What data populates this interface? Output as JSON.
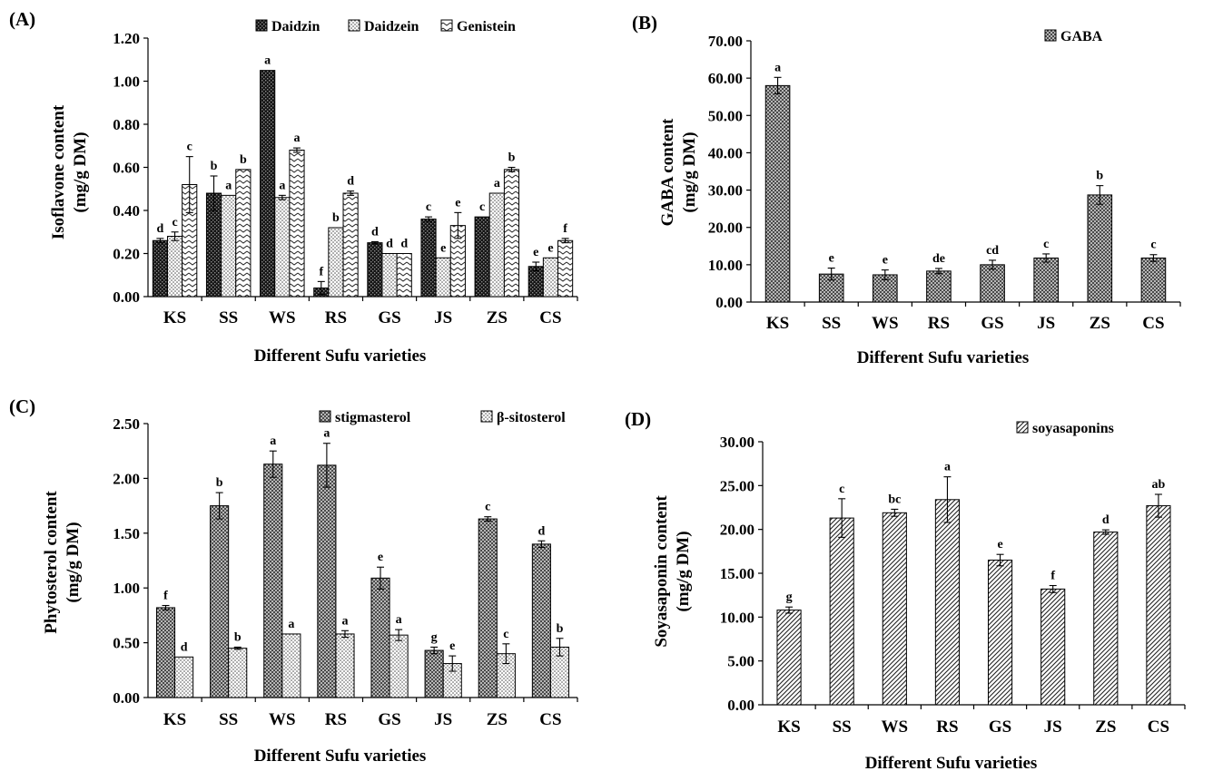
{
  "panels": [
    {
      "tag": "(A)",
      "chart_data": {
        "type": "bar",
        "categories": [
          "KS",
          "SS",
          "WS",
          "RS",
          "GS",
          "JS",
          "ZS",
          "CS"
        ],
        "ylim": [
          0,
          1.2
        ],
        "yticks": [
          "0.00",
          "0.20",
          "0.40",
          "0.60",
          "0.80",
          "1.00",
          "1.20"
        ],
        "xlabel": "Different  Sufu varieties",
        "ylabel_lines": [
          "Isoflavone content",
          "(mg/g DM)"
        ],
        "legend_position": "top-right",
        "series": [
          {
            "name": "Daidzin",
            "pattern": "checker",
            "values": [
              0.26,
              0.48,
              1.05,
              0.04,
              0.25,
              0.36,
              0.37,
              0.14
            ],
            "errors": [
              0.01,
              0.08,
              0.0,
              0.03,
              0.005,
              0.01,
              0.0,
              0.02
            ],
            "labels": [
              "d",
              "b",
              "a",
              "f",
              "d",
              "c",
              "c",
              "e"
            ]
          },
          {
            "name": "Daidzein",
            "pattern": "dots",
            "values": [
              0.28,
              0.47,
              0.46,
              0.32,
              0.2,
              0.18,
              0.48,
              0.18
            ],
            "errors": [
              0.02,
              0.0,
              0.01,
              0.0,
              0.0,
              0.0,
              0.0,
              0.0
            ],
            "labels": [
              "c",
              "a",
              "a",
              "b",
              "d",
              "e",
              "a",
              "e"
            ]
          },
          {
            "name": "Genistein",
            "pattern": "wave",
            "values": [
              0.52,
              0.59,
              0.68,
              0.48,
              0.2,
              0.33,
              0.59,
              0.26
            ],
            "errors": [
              0.13,
              0.0,
              0.01,
              0.01,
              0.0,
              0.06,
              0.01,
              0.01
            ],
            "labels": [
              "c",
              "b",
              "a",
              "d",
              "d",
              "e",
              "b",
              "f"
            ]
          }
        ]
      }
    },
    {
      "tag": "(B)",
      "chart_data": {
        "type": "bar",
        "categories": [
          "KS",
          "SS",
          "WS",
          "RS",
          "GS",
          "JS",
          "ZS",
          "CS"
        ],
        "ylim": [
          0,
          70
        ],
        "yticks": [
          "0.00",
          "10.00",
          "20.00",
          "30.00",
          "40.00",
          "50.00",
          "60.00",
          "70.00"
        ],
        "xlabel": "Different  Sufu varieties",
        "ylabel_lines": [
          "GABA content",
          "(mg/g DM)"
        ],
        "legend_position": "top-right",
        "series": [
          {
            "name": "GABA",
            "pattern": "crosshatch",
            "values": [
              58.0,
              7.5,
              7.3,
              8.3,
              10.0,
              11.8,
              28.7,
              11.8
            ],
            "errors": [
              2.2,
              1.6,
              1.3,
              0.7,
              1.2,
              1.1,
              2.5,
              0.9
            ],
            "labels": [
              "a",
              "e",
              "e",
              "de",
              "cd",
              "c",
              "b",
              "c"
            ]
          }
        ]
      }
    },
    {
      "tag": "(C)",
      "chart_data": {
        "type": "bar",
        "categories": [
          "KS",
          "SS",
          "WS",
          "RS",
          "GS",
          "JS",
          "ZS",
          "CS"
        ],
        "ylim": [
          0,
          2.5
        ],
        "yticks": [
          "0.00",
          "0.50",
          "1.00",
          "1.50",
          "2.00",
          "2.50"
        ],
        "xlabel": "Different  Sufu varieties",
        "ylabel_lines": [
          "Phytosterol content",
          "(mg/g DM)"
        ],
        "legend_position": "top-right",
        "series": [
          {
            "name": "stigmasterol",
            "pattern": "crosshatch",
            "values": [
              0.82,
              1.75,
              2.13,
              2.12,
              1.09,
              0.43,
              1.63,
              1.4
            ],
            "errors": [
              0.02,
              0.12,
              0.12,
              0.2,
              0.1,
              0.03,
              0.02,
              0.03
            ],
            "labels": [
              "f",
              "b",
              "a",
              "a",
              "e",
              "g",
              "c",
              "d"
            ]
          },
          {
            "name": "β-sitosterol",
            "pattern": "dots",
            "values": [
              0.37,
              0.45,
              0.58,
              0.58,
              0.57,
              0.31,
              0.4,
              0.46
            ],
            "errors": [
              0.0,
              0.01,
              0.0,
              0.03,
              0.05,
              0.07,
              0.09,
              0.08
            ],
            "labels": [
              "d",
              "b",
              "a",
              "a",
              "a",
              "e",
              "c",
              "b"
            ]
          }
        ]
      }
    },
    {
      "tag": "(D)",
      "chart_data": {
        "type": "bar",
        "categories": [
          "KS",
          "SS",
          "WS",
          "RS",
          "GS",
          "JS",
          "ZS",
          "CS"
        ],
        "ylim": [
          0,
          30
        ],
        "yticks": [
          "0.00",
          "5.00",
          "10.00",
          "15.00",
          "20.00",
          "25.00",
          "30.00"
        ],
        "xlabel": "Different  Sufu varieties",
        "ylabel_lines": [
          "Soyasaponin content",
          "(mg/g DM)"
        ],
        "legend_position": "top-right",
        "series": [
          {
            "name": "soyasaponins",
            "pattern": "diagonal",
            "values": [
              10.8,
              21.3,
              21.9,
              23.4,
              16.5,
              13.2,
              19.7,
              22.7
            ],
            "errors": [
              0.35,
              2.2,
              0.4,
              2.6,
              0.65,
              0.4,
              0.25,
              1.3
            ],
            "labels": [
              "g",
              "c",
              "bc",
              "a",
              "e",
              "f",
              "d",
              "ab"
            ]
          }
        ]
      }
    }
  ]
}
